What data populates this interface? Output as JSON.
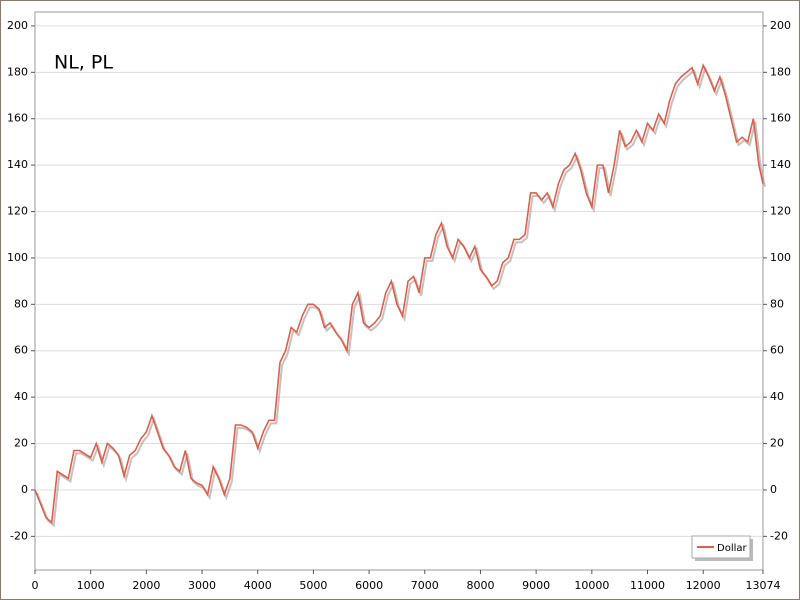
{
  "chart_data": {
    "type": "line",
    "title": "NL, PL",
    "x": [
      0,
      200,
      300,
      400,
      600,
      700,
      800,
      1000,
      1100,
      1200,
      1300,
      1400,
      1500,
      1600,
      1700,
      1800,
      1900,
      2000,
      2100,
      2200,
      2300,
      2400,
      2500,
      2600,
      2700,
      2800,
      2900,
      3000,
      3100,
      3200,
      3300,
      3400,
      3500,
      3600,
      3700,
      3800,
      3900,
      4000,
      4100,
      4200,
      4300,
      4400,
      4500,
      4600,
      4700,
      4800,
      4900,
      5000,
      5100,
      5200,
      5300,
      5400,
      5500,
      5600,
      5700,
      5800,
      5900,
      6000,
      6100,
      6200,
      6300,
      6400,
      6500,
      6600,
      6700,
      6800,
      6900,
      7000,
      7100,
      7200,
      7300,
      7400,
      7500,
      7600,
      7700,
      7800,
      7900,
      8000,
      8100,
      8200,
      8300,
      8400,
      8500,
      8600,
      8700,
      8800,
      8900,
      9000,
      9100,
      9200,
      9300,
      9400,
      9500,
      9600,
      9700,
      9800,
      9900,
      10000,
      10100,
      10200,
      10300,
      10400,
      10500,
      10600,
      10700,
      10800,
      10900,
      11000,
      11100,
      11200,
      11300,
      11400,
      11500,
      11600,
      11700,
      11800,
      11900,
      12000,
      12100,
      12200,
      12300,
      12400,
      12500,
      12600,
      12700,
      12800,
      12900,
      13000,
      13074
    ],
    "series": [
      {
        "name": "Dollar",
        "color": "#d9604a",
        "values": [
          0,
          -12,
          -14,
          8,
          5,
          17,
          17,
          14,
          20,
          12,
          20,
          18,
          15,
          6,
          15,
          17,
          22,
          25,
          32,
          25,
          18,
          15,
          10,
          8,
          17,
          5,
          3,
          2,
          -2,
          10,
          5,
          -2,
          5,
          28,
          28,
          27,
          25,
          18,
          25,
          30,
          30,
          55,
          60,
          70,
          68,
          75,
          80,
          80,
          78,
          70,
          72,
          68,
          65,
          60,
          80,
          85,
          72,
          70,
          72,
          75,
          85,
          90,
          80,
          75,
          90,
          92,
          85,
          100,
          100,
          110,
          115,
          105,
          100,
          108,
          105,
          100,
          105,
          95,
          92,
          88,
          90,
          98,
          100,
          108,
          108,
          110,
          128,
          128,
          125,
          128,
          122,
          132,
          138,
          140,
          145,
          138,
          128,
          122,
          140,
          140,
          128,
          140,
          155,
          148,
          150,
          155,
          150,
          158,
          155,
          162,
          158,
          168,
          175,
          178,
          180,
          182,
          175,
          183,
          178,
          172,
          178,
          170,
          160,
          150,
          152,
          150,
          160,
          140,
          132
        ]
      }
    ],
    "xlim": [
      0,
      13074
    ],
    "xticks": [
      0,
      1000,
      2000,
      3000,
      4000,
      5000,
      6000,
      7000,
      8000,
      9000,
      10000,
      11000,
      12000,
      13074
    ],
    "ylim": [
      -34.5,
      206
    ],
    "yticks": [
      -20,
      0,
      20,
      40,
      60,
      80,
      100,
      120,
      140,
      160,
      180,
      200
    ],
    "grid": true,
    "legend": "lower right"
  }
}
